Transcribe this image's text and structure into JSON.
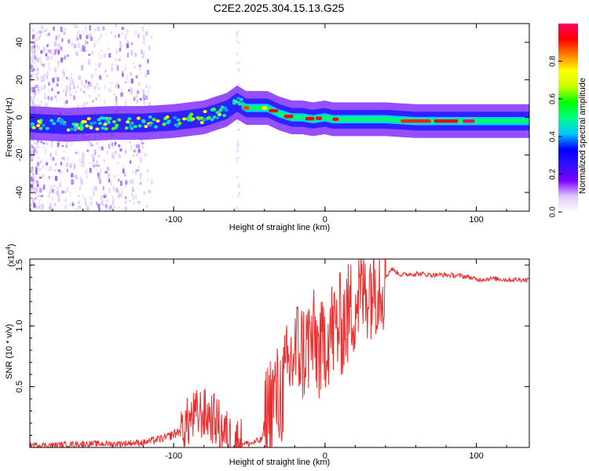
{
  "chart_data": [
    {
      "type": "heatmap",
      "title": "C2E2.2025.304.15.13.G25",
      "xlabel": "Height of straight line (km)",
      "ylabel": "Frequency (Hz)",
      "xlim": [
        -195,
        135
      ],
      "ylim": [
        -50,
        50
      ],
      "xticks": [
        -100,
        0,
        100
      ],
      "yticks": [
        -40,
        -20,
        0,
        20,
        40
      ],
      "colorbar": {
        "label": "Normalized spectral amplitude",
        "range": [
          0,
          1
        ],
        "ticks": [
          "0.0",
          "0.2",
          "0.4",
          "0.6",
          "0.8"
        ],
        "colors": [
          "#ffffff",
          "#e0c8ff",
          "#7a00ff",
          "#3010ff",
          "#0000ff",
          "#00c8ff",
          "#00ff80",
          "#00ff00",
          "#c8ff00",
          "#ffff00",
          "#ff8000",
          "#ff0000",
          "#ff0060"
        ]
      },
      "ridge": {
        "x": [
          -195,
          -170,
          -140,
          -120,
          -100,
          -80,
          -65,
          -58,
          -52,
          -45,
          -38,
          -30,
          -22,
          -15,
          -8,
          0,
          5,
          12,
          20,
          40,
          60,
          80,
          100,
          120,
          135
        ],
        "y": [
          -3,
          -4,
          -3,
          -3,
          -2,
          0,
          4,
          8,
          5,
          5,
          5,
          2,
          0,
          0,
          -1,
          0,
          -1,
          -1,
          -1,
          -1,
          -2,
          -2,
          -2,
          -2,
          -2
        ]
      }
    },
    {
      "type": "line",
      "xlabel": "Height of straight line (km)",
      "ylabel": "SNR (10 * v/v)",
      "ymultiplier": "(x10",
      "ymultiplier_exp": "4",
      "ymultiplier_close": ")",
      "xlim": [
        -195,
        135
      ],
      "ylim": [
        0,
        1.55
      ],
      "xticks": [
        -100,
        0,
        100
      ],
      "yticks": [
        "0.5",
        "1.0",
        "1.5"
      ],
      "color": "#e83030",
      "series": {
        "name": "SNR",
        "x": [
          -195,
          -180,
          -160,
          -140,
          -120,
          -105,
          -95,
          -88,
          -82,
          -76,
          -72,
          -68,
          -62,
          -56,
          -50,
          -42,
          -38,
          -34,
          -30,
          -26,
          -22,
          -18,
          -14,
          -10,
          -6,
          -2,
          0,
          4,
          10,
          16,
          22,
          28,
          34,
          40,
          44,
          50,
          60,
          70,
          80,
          90,
          96,
          100,
          110,
          120,
          135
        ],
        "y": [
          0.02,
          0.02,
          0.03,
          0.03,
          0.04,
          0.08,
          0.14,
          0.24,
          0.28,
          0.26,
          0.22,
          0.14,
          0.06,
          0.04,
          0.03,
          0.06,
          0.3,
          0.42,
          0.4,
          0.55,
          0.72,
          0.82,
          0.78,
          0.88,
          0.85,
          0.75,
          0.92,
          0.95,
          1.0,
          1.1,
          1.25,
          1.32,
          1.37,
          1.4,
          1.47,
          1.42,
          1.43,
          1.42,
          1.42,
          1.41,
          1.4,
          1.38,
          1.39,
          1.38,
          1.38
        ]
      }
    }
  ]
}
